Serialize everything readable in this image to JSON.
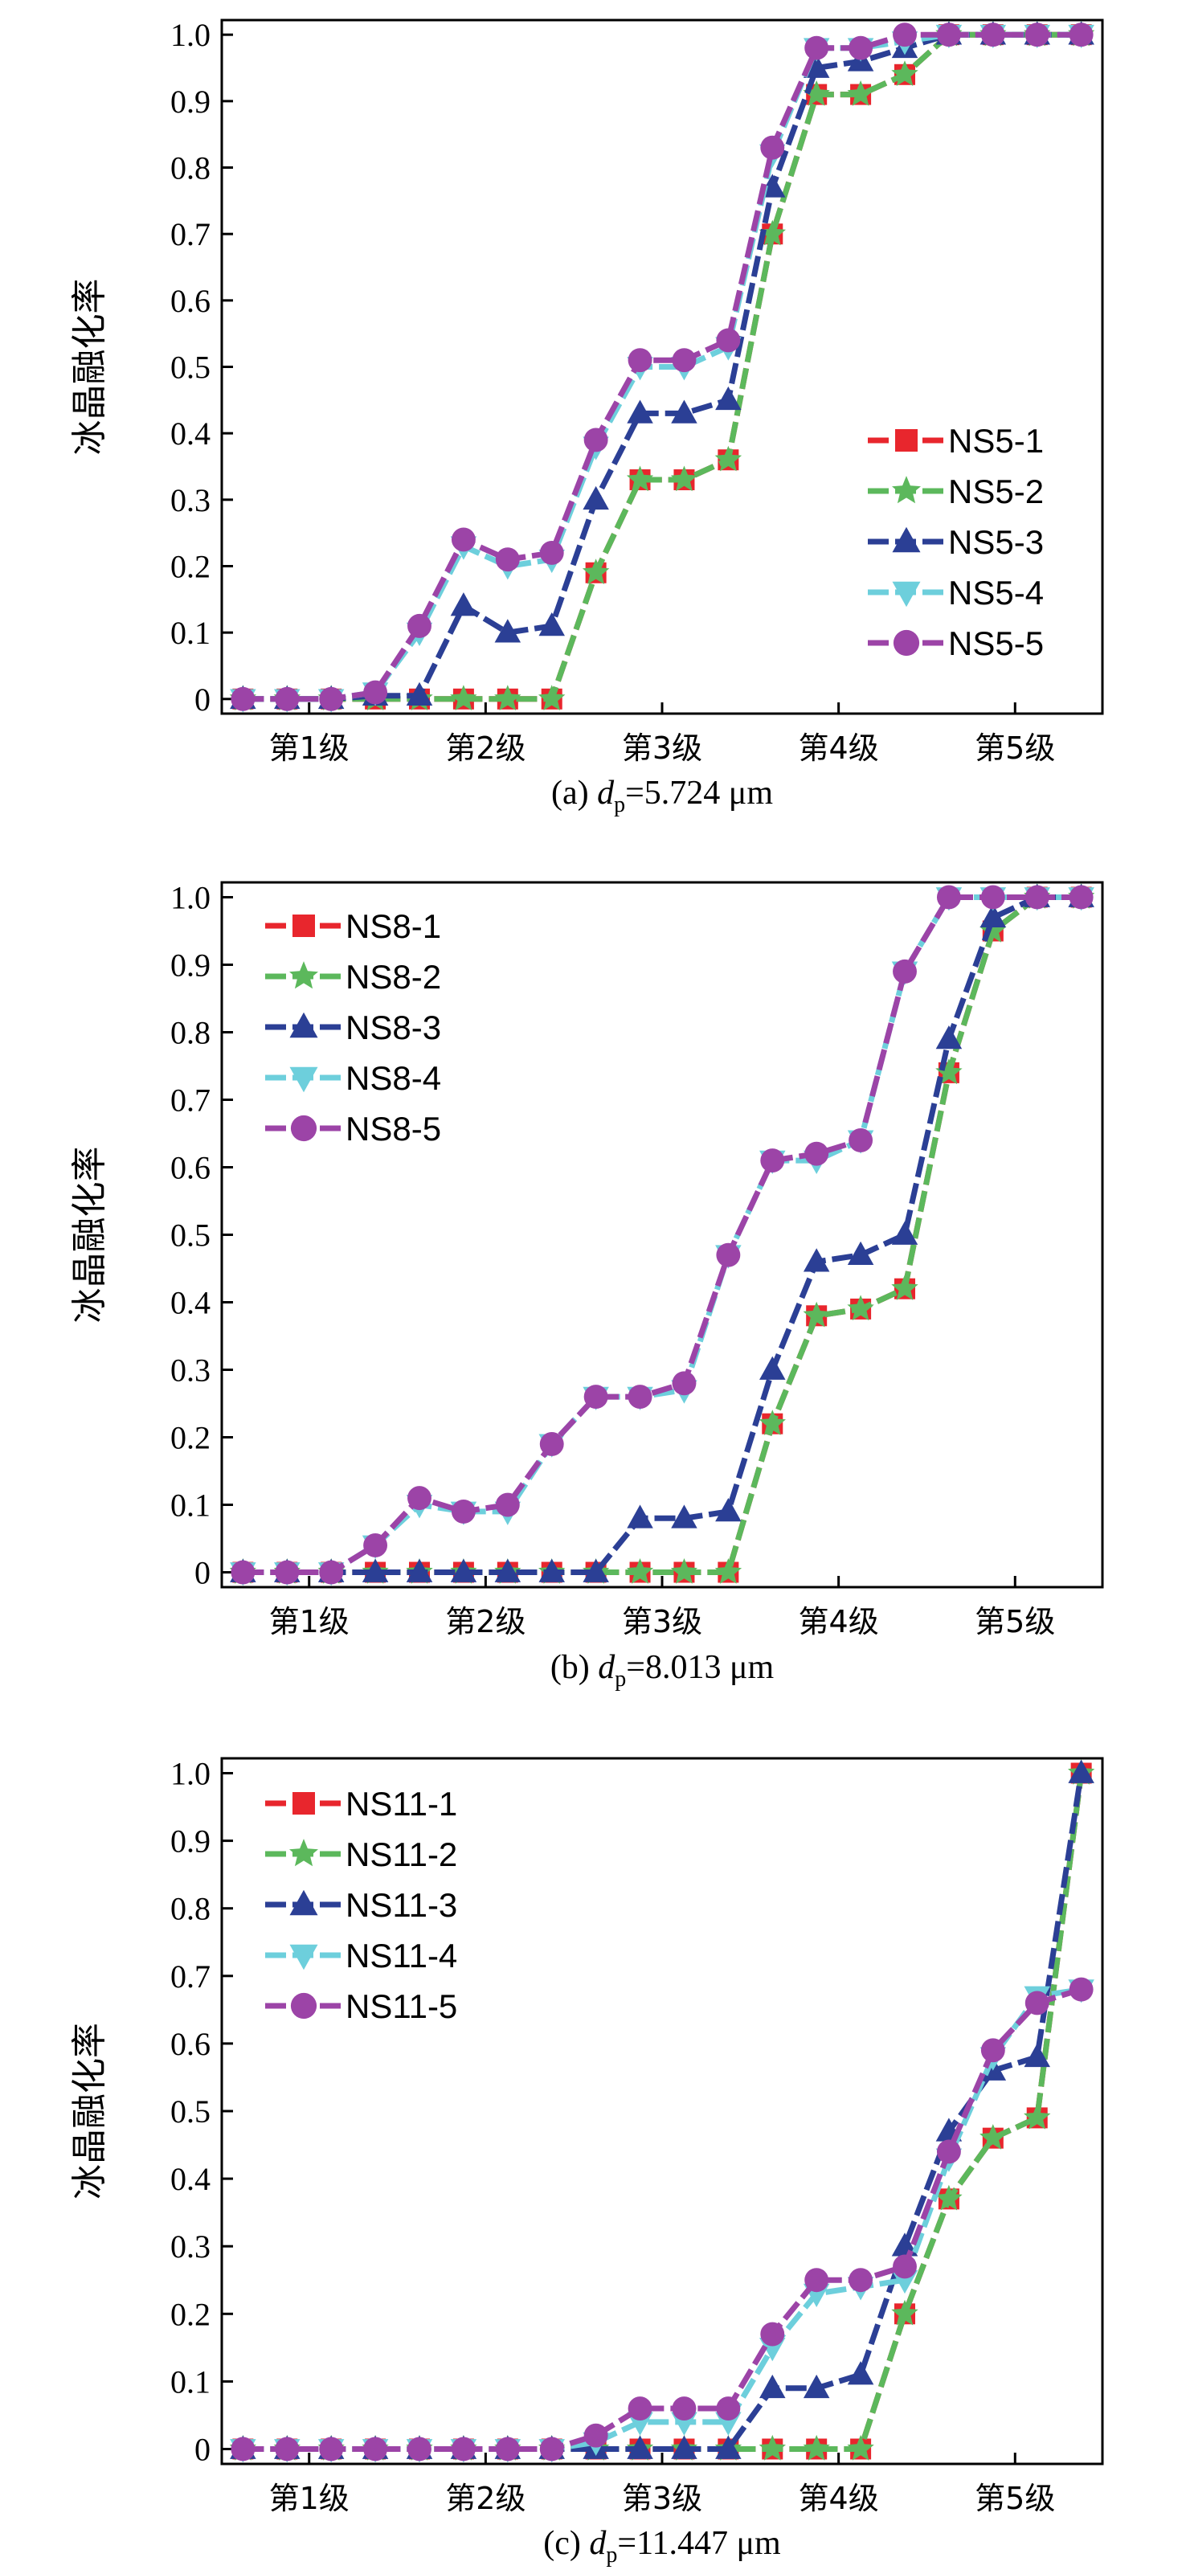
{
  "chart_data": [
    {
      "type": "line",
      "caption": {
        "prefix": "(a) ",
        "var": "d",
        "sub": "p",
        "value": "=5.724 μm"
      },
      "ylabel": "冰晶融化率",
      "ylim": [
        0,
        1.0
      ],
      "yticks": [
        "0",
        "0.1",
        "0.2",
        "0.3",
        "0.4",
        "0.5",
        "0.6",
        "0.7",
        "0.8",
        "0.9",
        "1.0"
      ],
      "categories": [
        "第1级",
        "第2级",
        "第3级",
        "第4级",
        "第5级"
      ],
      "x": [
        0,
        0.25,
        0.5,
        0.75,
        1,
        1.25,
        1.5,
        1.75,
        2,
        2.25,
        2.5,
        2.75,
        3,
        3.25,
        3.5,
        3.75,
        4,
        4.25,
        4.5,
        4.75
      ],
      "legend_position": "lower-right",
      "series": [
        {
          "name": "NS5-1",
          "color": "#e8262d",
          "marker": "square",
          "values": [
            0,
            0,
            0,
            0,
            0,
            0,
            0,
            0,
            0.19,
            0.33,
            0.33,
            0.36,
            0.7,
            0.91,
            0.91,
            0.94,
            1.0,
            1.0,
            1.0,
            1.0
          ]
        },
        {
          "name": "NS5-2",
          "color": "#5cb85c",
          "marker": "star",
          "values": [
            0,
            0,
            0,
            0,
            0,
            0,
            0,
            0,
            0.19,
            0.33,
            0.33,
            0.36,
            0.7,
            0.91,
            0.91,
            0.94,
            1.0,
            1.0,
            1.0,
            1.0
          ]
        },
        {
          "name": "NS5-3",
          "color": "#2b3f95",
          "marker": "triangle-up",
          "values": [
            0,
            0,
            0,
            0.005,
            0.005,
            0.14,
            0.1,
            0.11,
            0.3,
            0.43,
            0.43,
            0.45,
            0.77,
            0.95,
            0.96,
            0.98,
            1.0,
            1.0,
            1.0,
            1.0
          ]
        },
        {
          "name": "NS5-4",
          "color": "#6dcfdc",
          "marker": "triangle-down",
          "values": [
            0,
            0,
            0,
            0.01,
            0.1,
            0.23,
            0.2,
            0.21,
            0.38,
            0.5,
            0.5,
            0.53,
            0.82,
            0.98,
            0.98,
            0.99,
            1.0,
            1.0,
            1.0,
            1.0
          ]
        },
        {
          "name": "NS5-5",
          "color": "#9c44a7",
          "marker": "circle",
          "values": [
            0,
            0,
            0,
            0.01,
            0.11,
            0.24,
            0.21,
            0.22,
            0.39,
            0.51,
            0.51,
            0.54,
            0.83,
            0.98,
            0.98,
            1.0,
            1.0,
            1.0,
            1.0,
            1.0
          ]
        }
      ]
    },
    {
      "type": "line",
      "caption": {
        "prefix": "(b) ",
        "var": "d",
        "sub": "p",
        "value": "=8.013 μm"
      },
      "ylabel": "冰晶融化率",
      "ylim": [
        0,
        1.0
      ],
      "yticks": [
        "0",
        "0.1",
        "0.2",
        "0.3",
        "0.4",
        "0.5",
        "0.6",
        "0.7",
        "0.8",
        "0.9",
        "1.0"
      ],
      "categories": [
        "第1级",
        "第2级",
        "第3级",
        "第4级",
        "第5级"
      ],
      "x": [
        0,
        0.25,
        0.5,
        0.75,
        1,
        1.25,
        1.5,
        1.75,
        2,
        2.25,
        2.5,
        2.75,
        3,
        3.25,
        3.5,
        3.75,
        4,
        4.25,
        4.5,
        4.75
      ],
      "legend_position": "top-left",
      "series": [
        {
          "name": "NS8-1",
          "color": "#e8262d",
          "marker": "square",
          "values": [
            0,
            0,
            0,
            0,
            0,
            0,
            0,
            0,
            0,
            0,
            0,
            0,
            0.22,
            0.38,
            0.39,
            0.42,
            0.74,
            0.95,
            1.0,
            1.0
          ]
        },
        {
          "name": "NS8-2",
          "color": "#5cb85c",
          "marker": "star",
          "values": [
            0,
            0,
            0,
            0,
            0,
            0,
            0,
            0,
            0,
            0,
            0,
            0,
            0.22,
            0.38,
            0.39,
            0.42,
            0.74,
            0.95,
            1.0,
            1.0
          ]
        },
        {
          "name": "NS8-3",
          "color": "#2b3f95",
          "marker": "triangle-up",
          "values": [
            0,
            0,
            0,
            0,
            0,
            0,
            0,
            0,
            0,
            0.08,
            0.08,
            0.09,
            0.3,
            0.46,
            0.47,
            0.5,
            0.79,
            0.97,
            1.0,
            1.0
          ]
        },
        {
          "name": "NS8-4",
          "color": "#6dcfdc",
          "marker": "triangle-down",
          "values": [
            0,
            0,
            0,
            0.04,
            0.1,
            0.09,
            0.09,
            0.19,
            0.26,
            0.26,
            0.27,
            0.47,
            0.61,
            0.61,
            0.64,
            0.89,
            1.0,
            1.0,
            1.0,
            1.0
          ]
        },
        {
          "name": "NS8-5",
          "color": "#9c44a7",
          "marker": "circle",
          "values": [
            0,
            0,
            0,
            0.04,
            0.11,
            0.09,
            0.1,
            0.19,
            0.26,
            0.26,
            0.28,
            0.47,
            0.61,
            0.62,
            0.64,
            0.89,
            1.0,
            1.0,
            1.0,
            1.0
          ]
        }
      ]
    },
    {
      "type": "line",
      "caption": {
        "prefix": "(c) ",
        "var": "d",
        "sub": "p",
        "value": "=11.447 μm"
      },
      "ylabel": "冰晶融化率",
      "ylim": [
        0,
        1.0
      ],
      "yticks": [
        "0",
        "0.1",
        "0.2",
        "0.3",
        "0.4",
        "0.5",
        "0.6",
        "0.7",
        "0.8",
        "0.9",
        "1.0"
      ],
      "categories": [
        "第1级",
        "第2级",
        "第3级",
        "第4级",
        "第5级"
      ],
      "x": [
        0,
        0.25,
        0.5,
        0.75,
        1,
        1.25,
        1.5,
        1.75,
        2,
        2.25,
        2.5,
        2.75,
        3,
        3.25,
        3.5,
        3.75,
        4,
        4.25,
        4.5,
        4.75
      ],
      "legend_position": "top-left",
      "series": [
        {
          "name": "NS11-1",
          "color": "#e8262d",
          "marker": "square",
          "values": [
            0,
            0,
            0,
            0,
            0,
            0,
            0,
            0,
            0,
            0,
            0,
            0,
            0,
            0,
            0,
            0.2,
            0.37,
            0.46,
            0.49,
            1.0
          ]
        },
        {
          "name": "NS11-2",
          "color": "#5cb85c",
          "marker": "star",
          "values": [
            0,
            0,
            0,
            0,
            0,
            0,
            0,
            0,
            0,
            0,
            0,
            0,
            0,
            0,
            0,
            0.2,
            0.37,
            0.46,
            0.49,
            1.0
          ]
        },
        {
          "name": "NS11-3",
          "color": "#2b3f95",
          "marker": "triangle-up",
          "values": [
            0,
            0,
            0,
            0,
            0,
            0,
            0,
            0,
            0,
            0,
            0,
            0,
            0.09,
            0.09,
            0.11,
            0.3,
            0.47,
            0.56,
            0.58,
            1.0
          ]
        },
        {
          "name": "NS11-4",
          "color": "#6dcfdc",
          "marker": "triangle-down",
          "values": [
            0,
            0,
            0,
            0,
            0,
            0,
            0,
            0,
            0.01,
            0.04,
            0.04,
            0.04,
            0.15,
            0.23,
            0.24,
            0.25,
            0.43,
            0.58,
            0.67,
            0.68
          ]
        },
        {
          "name": "NS11-5",
          "color": "#9c44a7",
          "marker": "circle",
          "values": [
            0,
            0,
            0,
            0,
            0,
            0,
            0,
            0,
            0.02,
            0.06,
            0.06,
            0.06,
            0.17,
            0.25,
            0.25,
            0.27,
            0.44,
            0.59,
            0.66,
            0.68
          ]
        }
      ]
    }
  ]
}
